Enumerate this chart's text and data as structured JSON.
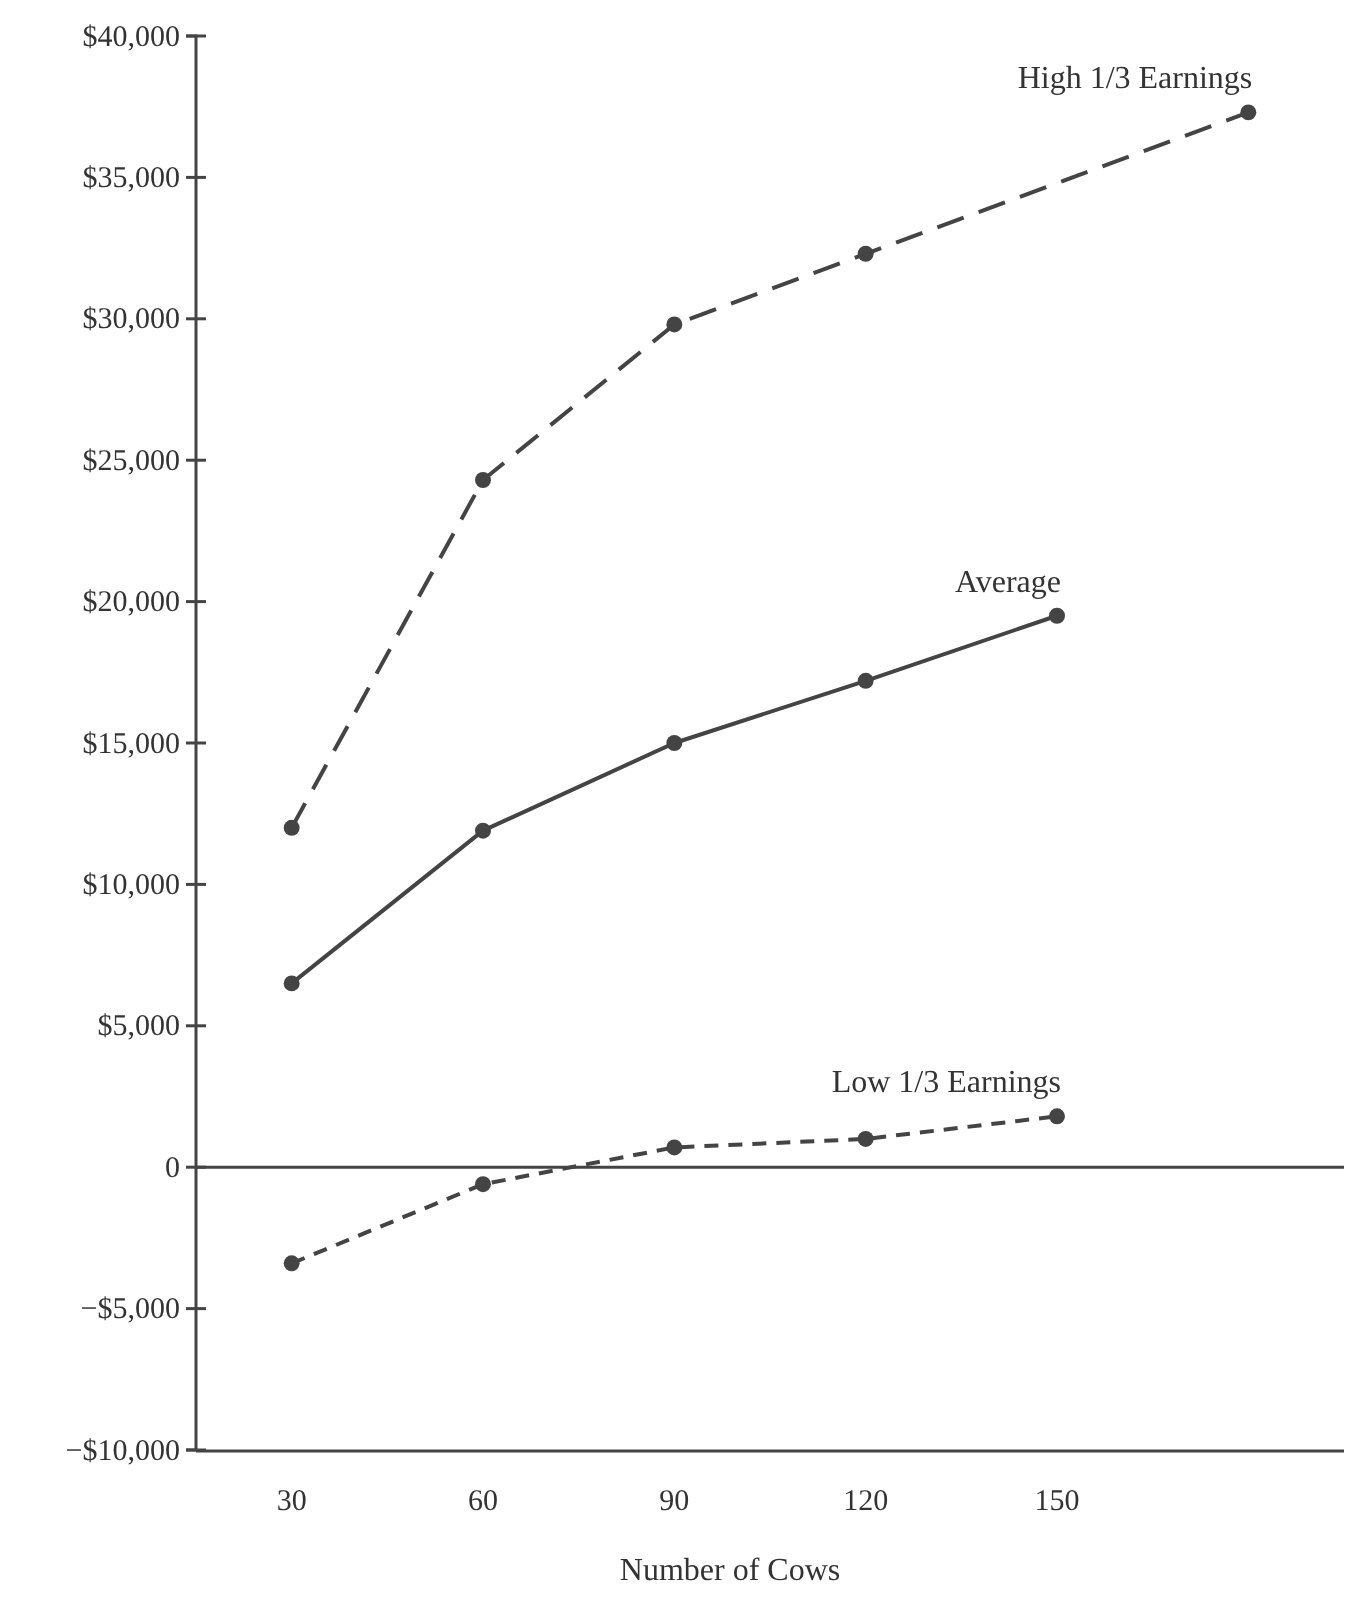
{
  "chart_data": {
    "type": "line",
    "xlabel": "Number of Cows",
    "categories": [
      "30",
      "60",
      "90",
      "120",
      "150",
      null
    ],
    "series": [
      {
        "name": "High 1/3 Earnings",
        "color": "#444444",
        "line_style": "dashed",
        "values": [
          12000,
          24300,
          29800,
          32300,
          null,
          37300
        ]
      },
      {
        "name": "Average",
        "color": "#444444",
        "line_style": "solid",
        "values": [
          6500,
          11900,
          15000,
          17200,
          19500,
          null
        ]
      },
      {
        "name": "Low 1/3 Earnings",
        "color": "#444444",
        "line_style": "dotted",
        "values": [
          -3400,
          -600,
          700,
          1000,
          1800,
          null
        ]
      }
    ],
    "ylim": [
      -10000,
      40000
    ],
    "yticks": [
      {
        "value": 40000,
        "label": "$40,000"
      },
      {
        "value": 35000,
        "label": "$35,000"
      },
      {
        "value": 30000,
        "label": "$30,000"
      },
      {
        "value": 25000,
        "label": "$25,000"
      },
      {
        "value": 20000,
        "label": "$20,000"
      },
      {
        "value": 15000,
        "label": "$15,000"
      },
      {
        "value": 10000,
        "label": "$10,000"
      },
      {
        "value": 5000,
        "label": "$5,000"
      },
      0,
      {
        "value": -5000,
        "label": "−$5,000"
      },
      {
        "value": -10000,
        "label": "−$10,000"
      }
    ],
    "ref_lines": [
      {
        "axis": "y",
        "value": 0,
        "color": "#444444"
      }
    ],
    "marker": "circle",
    "grid": false,
    "legend": false
  }
}
